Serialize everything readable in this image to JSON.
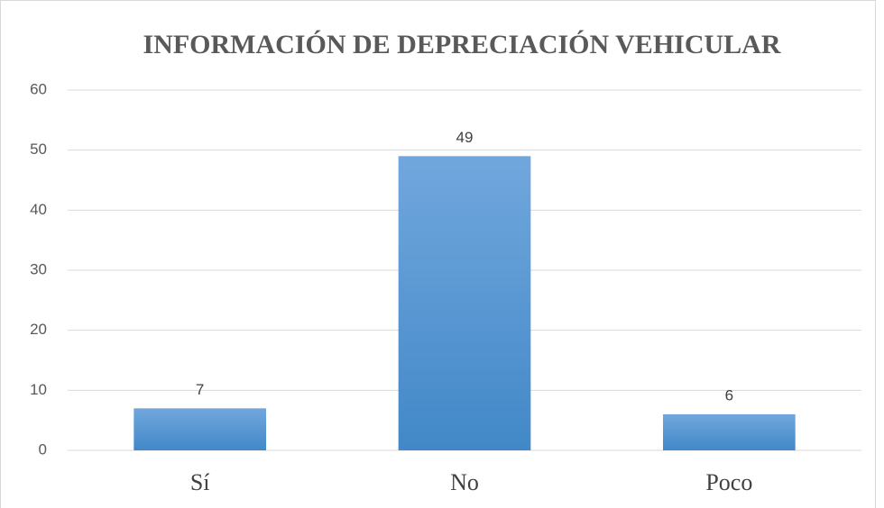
{
  "chart_data": {
    "type": "bar",
    "title": "INFORMACIÓN DE DEPRECIACIÓN VEHICULAR",
    "categories": [
      "Sí",
      "No",
      "Poco"
    ],
    "values": [
      7,
      49,
      6
    ],
    "color": "#5b9bd5",
    "ylim": [
      0,
      60
    ],
    "yticks": [
      0,
      10,
      20,
      30,
      40,
      50,
      60
    ],
    "grid": true
  }
}
